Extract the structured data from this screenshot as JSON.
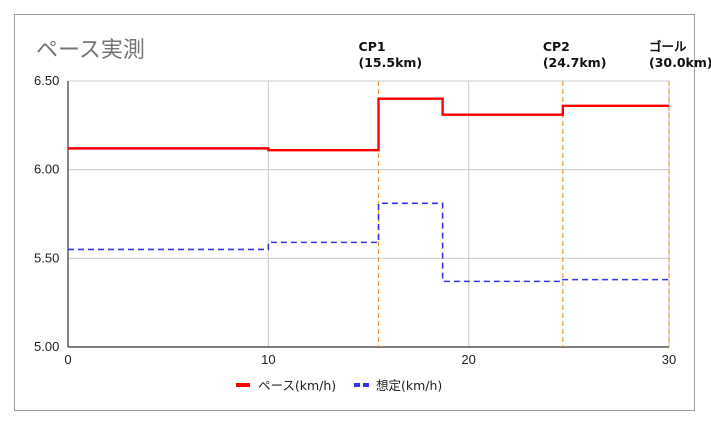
{
  "chart_data": {
    "type": "line",
    "title": "ペース実測",
    "xlabel": "",
    "ylabel": "",
    "xlim": [
      0,
      30
    ],
    "ylim": [
      5.0,
      6.5
    ],
    "x_ticks": [
      "0",
      "10",
      "20",
      "30"
    ],
    "y_ticks": [
      "5.00",
      "5.50",
      "6.00",
      "6.50"
    ],
    "grid": true,
    "legend_position": "bottom",
    "series": [
      {
        "name": "ペース(km/h)",
        "style": "solid",
        "color": "#ff0000",
        "step": true,
        "points": [
          [
            0,
            6.12
          ],
          [
            10,
            6.11
          ],
          [
            15.5,
            6.4
          ],
          [
            18.7,
            6.31
          ],
          [
            24.7,
            6.36
          ],
          [
            30,
            6.36
          ]
        ]
      },
      {
        "name": "想定(km/h)",
        "style": "dashed",
        "color": "#3333ee",
        "step": true,
        "points": [
          [
            0,
            5.55
          ],
          [
            10,
            5.59
          ],
          [
            15.5,
            5.81
          ],
          [
            18.7,
            5.37
          ],
          [
            24.7,
            5.38
          ],
          [
            30,
            5.38
          ]
        ]
      }
    ],
    "annotations": [
      {
        "x": 15.5,
        "line1": "CP1",
        "line2": "(15.5km)"
      },
      {
        "x": 24.7,
        "line1": "CP2",
        "line2": "(24.7km)"
      },
      {
        "x": 30,
        "line1": "ゴール",
        "line2": "(30.0km)"
      }
    ],
    "annotation_color": "#e69a3c"
  }
}
